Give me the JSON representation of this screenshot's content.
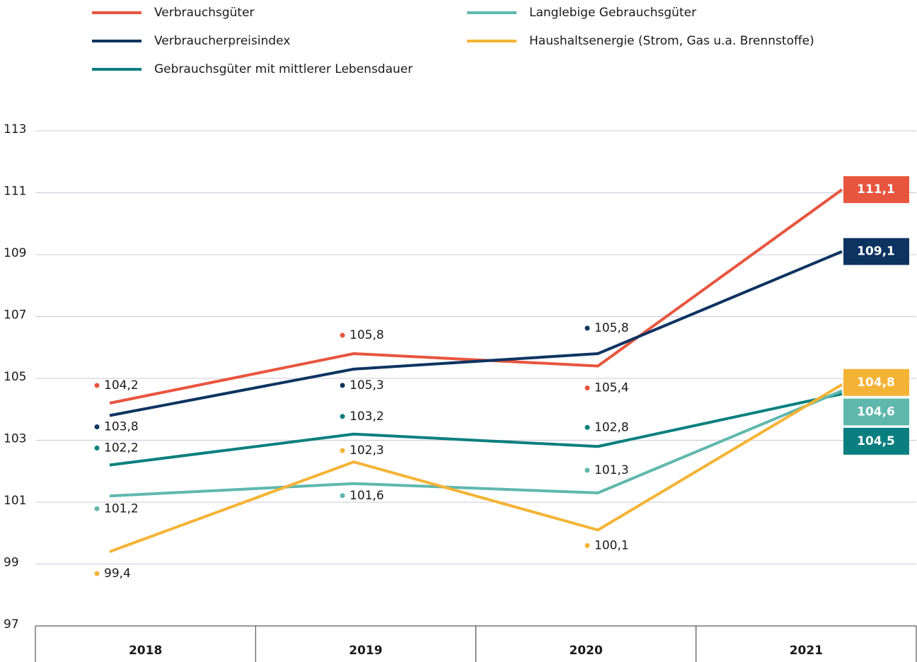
{
  "chart_data": {
    "type": "line",
    "categories": [
      "2018",
      "2019",
      "2020",
      "2021"
    ],
    "ylim": [
      97,
      113
    ],
    "yticks": [
      97,
      99,
      101,
      103,
      105,
      107,
      109,
      111,
      113
    ],
    "grid": true,
    "series": [
      {
        "name": "Verbrauchsgüter",
        "color": "#e8553e",
        "values": [
          104.2,
          105.8,
          105.4,
          111.1
        ],
        "value_labels": [
          "104,2",
          "105,8",
          "105,4",
          "111,1"
        ]
      },
      {
        "name": "Verbraucherpreisindex",
        "color": "#0d3461",
        "values": [
          103.8,
          105.3,
          105.8,
          109.1
        ],
        "value_labels": [
          "103,8",
          "105,3",
          "105,8",
          "109,1"
        ]
      },
      {
        "name": "Gebrauchsgüter mit mittlerer Lebensdauer",
        "color": "#0a7f7f",
        "values": [
          102.2,
          103.2,
          102.8,
          104.5
        ],
        "value_labels": [
          "102,2",
          "103,2",
          "102,8",
          "104,5"
        ]
      },
      {
        "name": "Langlebige Gebrauchsgüter",
        "color": "#5fb8ad",
        "values": [
          101.2,
          101.6,
          101.3,
          104.6
        ],
        "value_labels": [
          "101,2",
          "101,6",
          "101,3",
          "104,6"
        ]
      },
      {
        "name": "Haushaltsenergie (Strom, Gas u.a. Brennstoffe)",
        "color": "#f5b335",
        "values": [
          99.4,
          102.3,
          100.1,
          104.8
        ],
        "value_labels": [
          "99,4",
          "102,3",
          "100,1",
          "104,8"
        ]
      }
    ]
  }
}
